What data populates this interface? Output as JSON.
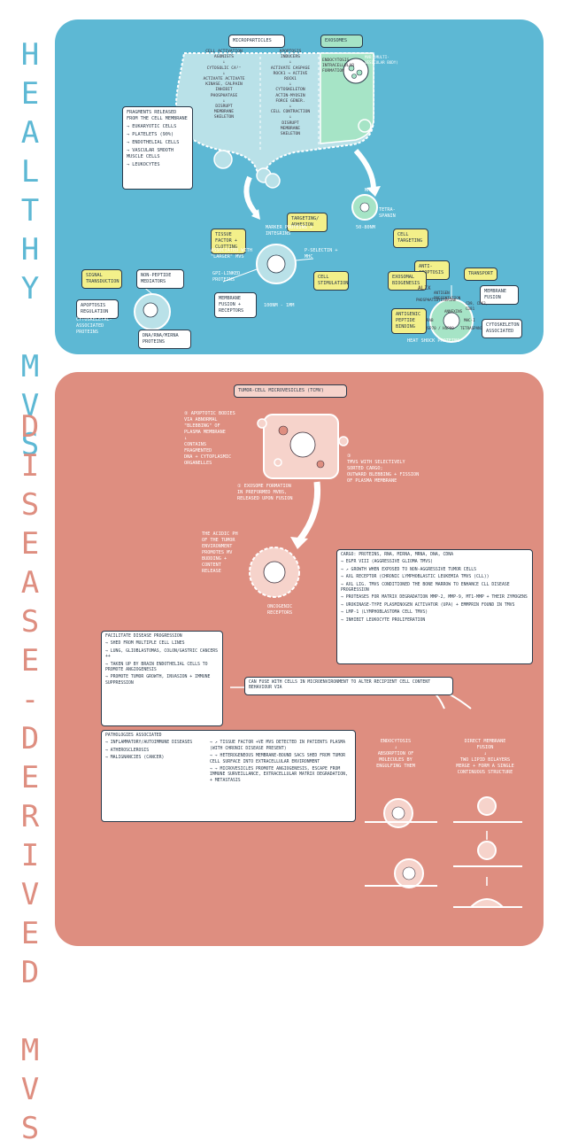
{
  "side_titles": {
    "healthy": "HEALTHY MVS",
    "disease": "DISEASE-DERIVED MVS"
  },
  "healthy": {
    "microparticles_tag": "MICROPARTICLES",
    "exosomes_tag": "EXOSOMES",
    "cell_activation": [
      "CELL ACTIVATION",
      "AGONISTS",
      "↓",
      "CYTOSOLIC Ca²⁺",
      "↓",
      "ACTIVATE   ACTIVATE",
      "KINASE,   CALPAIN",
      "INHIBIT",
      "PHOSPHATASE",
      "↓",
      "DISRUPT",
      "MEMBRANE",
      "SKELETON"
    ],
    "apoptosis": [
      "APOPTOSIS",
      "INDUCERS",
      "↓",
      "ACTIVATE CASPASE",
      "ROCK1 → ACTIVE",
      "ROCK1",
      "↓",
      "CYTOSKELETON",
      "ACTIN-MYOSIN",
      "FORCE GENER.",
      "↓",
      "CELL CONTRACTION",
      "↓",
      "DISRUPT",
      "MEMBRANE",
      "SKELETON"
    ],
    "exosome_text": [
      "ENDOCYTOSIS",
      "INTRACELLULAR",
      "FORMATION"
    ],
    "mvb_label": "MVB (MULTI-VESICULAR BODY)",
    "fragments_title": "FRAGMENTS RELEASED FROM THE CELL MEMBRANE",
    "fragments": [
      "EUKARYOTIC CELLS",
      "PLATELETS (90%)",
      "ENDOTHELIAL CELLS",
      "VASCULAR SMOOTH MUSCLE CELLS",
      "LEUKOCYTES"
    ],
    "mhc_label": "MHC",
    "tetraspanin_label": "TETRA-SPANIN",
    "exo_size": "50-80nm",
    "cell_targeting": "CELL TARGETING",
    "targeting_adhesion": "TARGETING/ ADHESION",
    "marker_proteins": "MARKER PROTEINS + INTEGRINS",
    "tissue_factor": "TISSUE FACTOR + CLOTTING",
    "associated_larger": "ASSOCIATED WITH \"LARGER\" MVS",
    "gpi_linked": "GPI-LINKED PROTEINS",
    "membrane_fusion_receptors": "MEMBRANE FUSION + RECEPTORS",
    "mp_size": "100nm - 1μm",
    "p_selectin": "P-SELECTIN + MHC",
    "cell_stimulation": "CELL STIMULATION",
    "signal_transduction": "SIGNAL TRANSDUCTION",
    "non_peptide": "NON-PEPTIDE MEDIATORS",
    "apoptosis_regulation": "APOPTOSIS REGULATION",
    "cytoskeletal": "CYTOSKELETAL-ASSOCIATED PROTEINS",
    "dna_rna": "DNA/RNA/MIRNA PROTEINS",
    "anti_apoptosis": "ANTI-APOPTOSIS",
    "transport": "TRANSPORT",
    "exosomal_biogenesis": "EXOSOMAL BIOGENESIS",
    "membrane_fusion": "MEMBRANE FUSION",
    "alix": "ALIX",
    "antigen_pres": "ANTIGEN PRESENTATION",
    "phosphatidyl": "PHOSPHATIDYLSERINE",
    "annexins": "ANNEXINS",
    "rab": "RAB",
    "cd_markers": "CD9, CD63, CD81",
    "mhc_2": "MHC-I",
    "hsps": "HSP70 / HSP90",
    "cytoskeleton_assoc": "CYTOSKELETON ASSOCIATED",
    "tetraspanins": "TETRASPANINS",
    "peptide_binding": "ANTIGENIC PEPTIDE BINDING",
    "heat_shock": "HEAT SHOCK PROTEINS"
  },
  "disease": {
    "tmv_title": "TUMOR-CELL MICROVESICLES (TCMV)",
    "step2": [
      "② APOPTOTIC BODIES",
      "VIA ABNORMAL",
      "\"BLEBBING\" OF",
      "PLASMA MEMBRANE",
      "↓",
      "CONTAINS",
      "FRAGMENTED",
      "DNA + CYTOPLASMIC",
      "ORGANELLES"
    ],
    "step3": [
      "③",
      "TMVS WITH SELECTIVELY",
      "SORTED CARGO;",
      "OUTWARD BLEBBING + FISSION",
      "OF PLASMA MEMBRANE"
    ],
    "step1": [
      "① EXOSOME FORMATION",
      "IN PREFORMED MVBS,",
      "RELEASED UPON FUSION"
    ],
    "acidic": [
      "THE ACIDIC pH",
      "OF THE TUMOR",
      "ENVIRONMENT",
      "PROMOTES MV",
      "BUDDING +",
      "CONTENT",
      "RELEASE"
    ],
    "oncogenic": "ONCOGENIC RECEPTORS",
    "cargo_title": "CARGO: PROTEINS, RNA, MIRNA, MRNA, DNA, CDNA",
    "cargo": [
      "EGFR VIII (AGGRESSIVE GLIOMA TMVS)",
      "↗ GROWTH WHEN EXPOSED TO NON-AGGRESSIVE TUMOR CELLS",
      "AXL RECEPTOR (CHRONIC LYMPHOBLASTIC LEUKEMIA TMVS (CLL))",
      "AXL LIG. TMVS CONDITIONED THE BONE MARROW TO ENHANCE CLL DISEASE PROGRESSION",
      "PROTEASES FOR MATRIX DEGRADATION MMP-2, MMP-9, MT1-MMP + THEIR ZYMOGENS",
      "UROKINASE-TYPE PLASMINOGEN ACTIVATOR (UPA) + EMMPRIN FOUND IN TMVS",
      "LMP-1 (LYMPHOBLASTOMA CELL TMVS)",
      "INHIBIT LEUKOCYTE PROLIFERATION"
    ],
    "facilitate_title": "FACILITATE DISEASE PROGRESSION",
    "facilitate": [
      "SHED FROM MULTIPLE CELL LINES",
      "LUNG, GLIOBLASTOMAS, COLON/GASTRIC CANCERS ++",
      "TAKEN UP BY BRAIN ENDOTHELIAL CELLS TO PROMOTE ANGIOGENESIS",
      "PROMOTE TUMOR GROWTH, INVASION + IMMUNE SUPPRESSION"
    ],
    "fuse_text": "CAN FUSE WITH CELLS IN MICROENVIRONMENT TO ALTER RECIPIENT CELL CONTENT BEHAVIOUR VIA",
    "pathologies_title": "PATHOLOGIES ASSOCIATED",
    "pathologies": [
      "INFLAMMATORY/AUTOIMMUNE DISEASES",
      "ATHEROSCLEROSIS",
      "MALIGNANCIES (CANCER)"
    ],
    "path_results": [
      "↗ TISSUE FACTOR +VE MVS DETECTED IN PATIENTS PLASMA (WITH CHRONIC DISEASE PRESENT)",
      "→ HETEROGENEOUS MEMBRANE-BOUND SACS SHED FROM TUMOR CELL SURFACE INTO EXTRACELLULAR ENVIRONMENT",
      "→ MICROVESICLES PROMOTE ANGIOGENESIS, ESCAPE FROM IMMUNE SURVEILLANCE, EXTRACELLULAR MATRIX DEGRADATION, + METASTASIS"
    ],
    "endocytosis": [
      "ENDOCYTOSIS",
      "↓",
      "ABSORPTION OF",
      "MOLECULES BY",
      "ENGULFING THEM"
    ],
    "direct_fusion": [
      "DIRECT MEMBRANE",
      "FUSION",
      "↓",
      "TWO LIPID BILAYERS",
      "MERGE + FORM A SINGLE",
      "CONTINUOUS STRUCTURE"
    ]
  },
  "colors": {
    "healthy_panel": "#5db8d4",
    "disease_panel": "#de8e80",
    "cell_fill": "#b9e1e8",
    "exosome_fill": "#a6e4c6",
    "highlight": "#f3f08a",
    "ink": "#2b3a4a"
  }
}
